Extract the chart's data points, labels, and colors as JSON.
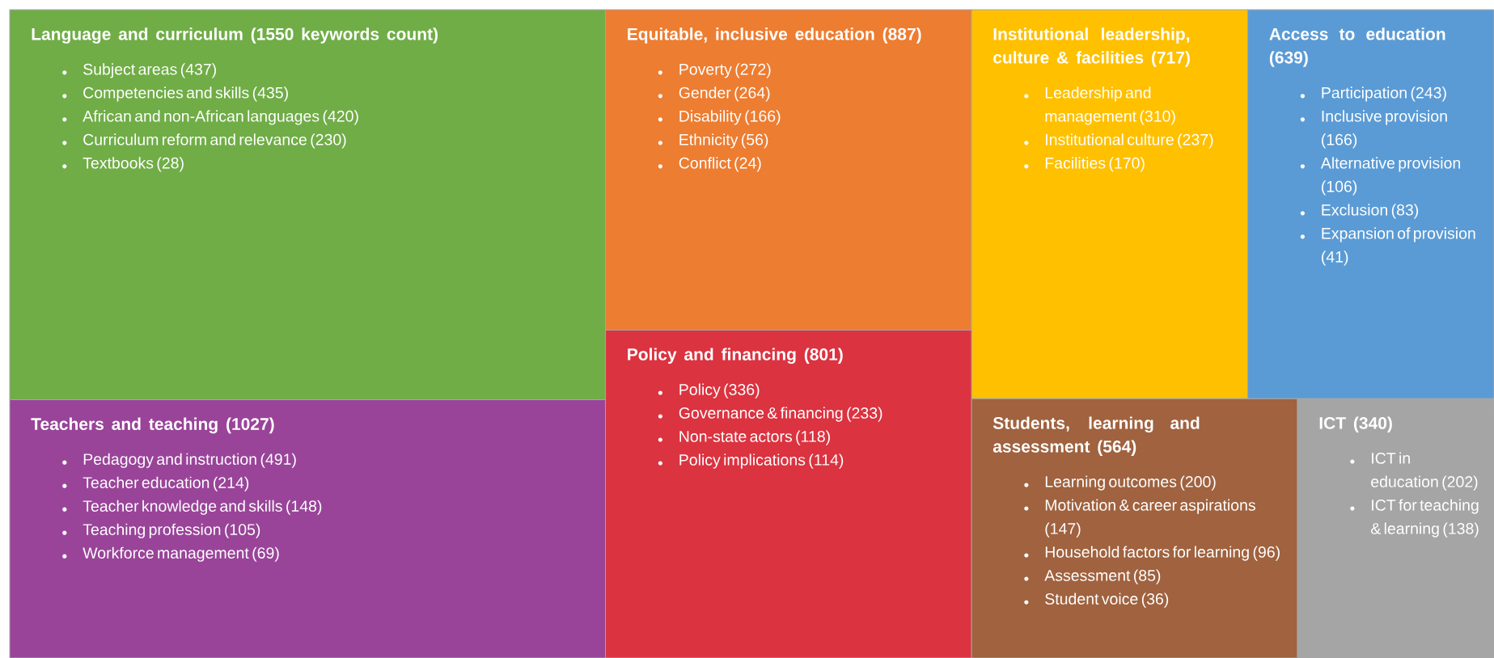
{
  "chart_data": {
    "type": "other",
    "categories": [
      "Subject areas",
      "Competencies and skills",
      "African and non-African languages",
      "Curriculum reform and relevance",
      "Textbooks",
      "Poverty",
      "Gender",
      "Disability",
      "Ethnicity",
      "Conflict",
      "Leadership and management",
      "Institutional culture",
      "Facilities",
      "Participation",
      "Inclusive provision",
      "Alternative provision",
      "Exclusion",
      "Expansion of provision",
      "Pedagogy and instruction",
      "Teacher education",
      "Teacher knowledge and skills",
      "Teaching profession",
      "Workforce management",
      "Policy",
      "Governance & financing",
      "Non-state actors",
      "Policy implications",
      "Learning outcomes",
      "Motivation & career aspirations",
      "Household factors for learning",
      "Assessment",
      "Student voice",
      "ICT in education",
      "ICT for teaching & learning"
    ],
    "series": [
      {
        "name": "Language and curriculum (1550 keywords count)",
        "color": "#70ad47",
        "values": [
          437,
          435,
          420,
          230,
          28,
          null,
          null,
          null,
          null,
          null,
          null,
          null,
          null,
          null,
          null,
          null,
          null,
          null,
          null,
          null,
          null,
          null,
          null,
          null,
          null,
          null,
          null,
          null,
          null,
          null,
          null,
          null,
          null,
          null
        ],
        "value_labels": [
          "(437)",
          "(435)",
          "(420)",
          "(230)",
          "(28)",
          null,
          null,
          null,
          null,
          null,
          null,
          null,
          null,
          null,
          null,
          null,
          null,
          null,
          null,
          null,
          null,
          null,
          null,
          null,
          null,
          null,
          null,
          null,
          null,
          null,
          null,
          null,
          null,
          null
        ]
      },
      {
        "name": "Equitable, inclusive education (887)",
        "color": "#ed7d31",
        "values": [
          null,
          null,
          null,
          null,
          null,
          272,
          264,
          166,
          56,
          24,
          null,
          null,
          null,
          null,
          null,
          null,
          null,
          null,
          null,
          null,
          null,
          null,
          null,
          null,
          null,
          null,
          null,
          null,
          null,
          null,
          null,
          null,
          null,
          null
        ],
        "value_labels": [
          null,
          null,
          null,
          null,
          null,
          "(272)",
          "(264)",
          "(166)",
          "(56)",
          "(24)",
          null,
          null,
          null,
          null,
          null,
          null,
          null,
          null,
          null,
          null,
          null,
          null,
          null,
          null,
          null,
          null,
          null,
          null,
          null,
          null,
          null,
          null,
          null,
          null
        ]
      },
      {
        "name": "Institutional leadership, culture & facilities (717)",
        "color": "#ffc000",
        "values": [
          null,
          null,
          null,
          null,
          null,
          null,
          null,
          null,
          null,
          null,
          310,
          237,
          170,
          null,
          null,
          null,
          null,
          null,
          null,
          null,
          null,
          null,
          null,
          null,
          null,
          null,
          null,
          null,
          null,
          null,
          null,
          null,
          null,
          null
        ],
        "value_labels": [
          null,
          null,
          null,
          null,
          null,
          null,
          null,
          null,
          null,
          null,
          "(310)",
          "(237)",
          "(170)",
          null,
          null,
          null,
          null,
          null,
          null,
          null,
          null,
          null,
          null,
          null,
          null,
          null,
          null,
          null,
          null,
          null,
          null,
          null,
          null,
          null
        ]
      },
      {
        "name": "Access to education (639)",
        "color": "#5b9bd5",
        "values": [
          null,
          null,
          null,
          null,
          null,
          null,
          null,
          null,
          null,
          null,
          null,
          null,
          null,
          243,
          166,
          106,
          83,
          41,
          null,
          null,
          null,
          null,
          null,
          null,
          null,
          null,
          null,
          null,
          null,
          null,
          null,
          null,
          null,
          null
        ],
        "value_labels": [
          null,
          null,
          null,
          null,
          null,
          null,
          null,
          null,
          null,
          null,
          null,
          null,
          null,
          "(243)",
          "(166)",
          "(106)",
          "(83)",
          "(41)",
          null,
          null,
          null,
          null,
          null,
          null,
          null,
          null,
          null,
          null,
          null,
          null,
          null,
          null,
          null,
          null
        ]
      },
      {
        "name": "Teachers and teaching (1027)",
        "color": "#994499",
        "values": [
          null,
          null,
          null,
          null,
          null,
          null,
          null,
          null,
          null,
          null,
          null,
          null,
          null,
          null,
          null,
          null,
          null,
          null,
          491,
          214,
          148,
          105,
          69,
          null,
          null,
          null,
          null,
          null,
          null,
          null,
          null,
          null,
          null,
          null
        ],
        "value_labels": [
          null,
          null,
          null,
          null,
          null,
          null,
          null,
          null,
          null,
          null,
          null,
          null,
          null,
          null,
          null,
          null,
          null,
          null,
          "(491)",
          "(214)",
          "(148)",
          "(105)",
          "(69)",
          null,
          null,
          null,
          null,
          null,
          null,
          null,
          null,
          null,
          null,
          null
        ]
      },
      {
        "name": "Policy and financing (801)",
        "color": "#db3340",
        "values": [
          null,
          null,
          null,
          null,
          null,
          null,
          null,
          null,
          null,
          null,
          null,
          null,
          null,
          null,
          null,
          null,
          null,
          null,
          null,
          null,
          null,
          null,
          null,
          336,
          233,
          118,
          114,
          null,
          null,
          null,
          null,
          null,
          null,
          null
        ],
        "value_labels": [
          null,
          null,
          null,
          null,
          null,
          null,
          null,
          null,
          null,
          null,
          null,
          null,
          null,
          null,
          null,
          null,
          null,
          null,
          null,
          null,
          null,
          null,
          null,
          "(336)",
          "(233)",
          "(118)",
          "(114)",
          null,
          null,
          null,
          null,
          null,
          null,
          null
        ]
      },
      {
        "name": "Students, learning and assessment (564)",
        "color": "#a0623f",
        "values": [
          null,
          null,
          null,
          null,
          null,
          null,
          null,
          null,
          null,
          null,
          null,
          null,
          null,
          null,
          null,
          null,
          null,
          null,
          null,
          null,
          null,
          null,
          null,
          null,
          null,
          null,
          null,
          200,
          147,
          96,
          85,
          36,
          null,
          null
        ],
        "value_labels": [
          null,
          null,
          null,
          null,
          null,
          null,
          null,
          null,
          null,
          null,
          null,
          null,
          null,
          null,
          null,
          null,
          null,
          null,
          null,
          null,
          null,
          null,
          null,
          null,
          null,
          null,
          null,
          "(200)",
          "(147)",
          "(96)",
          "(85)",
          "(36)",
          null,
          null
        ]
      },
      {
        "name": "ICT (340)",
        "color": "#a5a5a5",
        "values": [
          null,
          null,
          null,
          null,
          null,
          null,
          null,
          null,
          null,
          null,
          null,
          null,
          null,
          null,
          null,
          null,
          null,
          null,
          null,
          null,
          null,
          null,
          null,
          null,
          null,
          null,
          null,
          null,
          null,
          null,
          null,
          null,
          202,
          138
        ],
        "value_labels": [
          null,
          null,
          null,
          null,
          null,
          null,
          null,
          null,
          null,
          null,
          null,
          null,
          null,
          null,
          null,
          null,
          null,
          null,
          null,
          null,
          null,
          null,
          null,
          null,
          null,
          null,
          null,
          null,
          null,
          null,
          null,
          null,
          "(202)",
          "(138)"
        ]
      }
    ]
  }
}
